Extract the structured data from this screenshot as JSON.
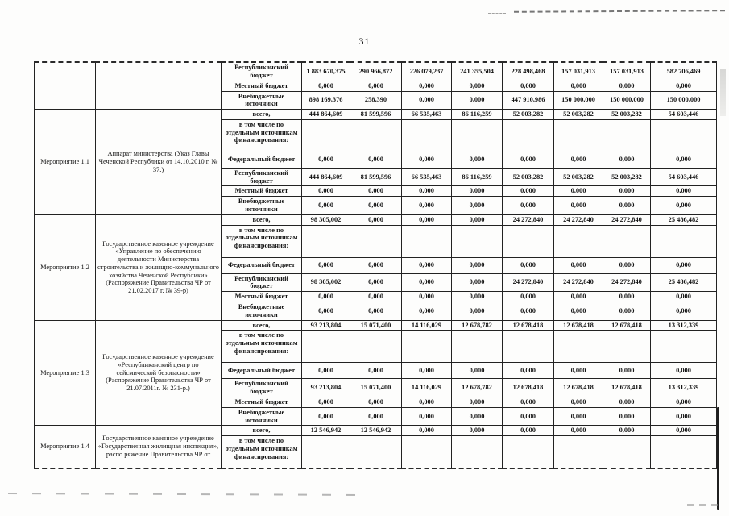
{
  "page": {
    "number": "31"
  },
  "table": {
    "sections": [
      {
        "activity": "",
        "description": "",
        "rows": [
          {
            "label": "Республиканский бюджет",
            "values": [
              "1 883 670,375",
              "290 966,872",
              "226 079,237",
              "241 355,504",
              "228 498,468",
              "157 031,913",
              "157 031,913",
              "582 706,469"
            ]
          },
          {
            "label": "Местный бюджет",
            "values": [
              "0,000",
              "0,000",
              "0,000",
              "0,000",
              "0,000",
              "0,000",
              "0,000",
              "0,000"
            ]
          },
          {
            "label": "Внебюджетные источники",
            "values": [
              "898 169,376",
              "258,390",
              "0,000",
              "0,000",
              "447 910,986",
              "150 000,000",
              "150 000,000",
              "150 000,000"
            ]
          }
        ]
      },
      {
        "activity": "Мероприятие 1.1",
        "description": "Аппарат министерства (Указ Главы Чеченской Республики  от 14.10.2010 г. № 37.)",
        "rows": [
          {
            "label": "всего,",
            "values": [
              "444 864,609",
              "81 599,596",
              "66 535,463",
              "86 116,259",
              "52 003,282",
              "52 003,282",
              "52 003,282",
              "54 603,446"
            ]
          },
          {
            "label": "в том числе по отдельным источникам финансирования:",
            "values": [
              "",
              "",
              "",
              "",
              "",
              "",
              "",
              ""
            ]
          },
          {
            "label": "Федеральный бюджет",
            "values": [
              "0,000",
              "0,000",
              "0,000",
              "0,000",
              "0,000",
              "0,000",
              "0,000",
              "0,000"
            ]
          },
          {
            "label": "Республиканский бюджет",
            "values": [
              "444 864,609",
              "81 599,596",
              "66 535,463",
              "86 116,259",
              "52 003,282",
              "52 003,282",
              "52 003,282",
              "54 603,446"
            ]
          },
          {
            "label": "Местный бюджет",
            "values": [
              "0,000",
              "0,000",
              "0,000",
              "0,000",
              "0,000",
              "0,000",
              "0,000",
              "0,000"
            ]
          },
          {
            "label": "Внебюджетные источники",
            "values": [
              "0,000",
              "0,000",
              "0,000",
              "0,000",
              "0,000",
              "0,000",
              "0,000",
              "0,000"
            ]
          }
        ]
      },
      {
        "activity": "Мероприятие 1.2",
        "description": "Государственное казенное учреждение «Управление по обеспечению деятельности Министерства строительства и жилищно-коммунального хозяйства Чеченской Республики» (Распоряжение Правительства ЧР от 21.02.2017 г. № 39-р)",
        "rows": [
          {
            "label": "всего,",
            "values": [
              "98 305,002",
              "0,000",
              "0,000",
              "0,000",
              "24 272,840",
              "24 272,840",
              "24 272,840",
              "25 486,482"
            ]
          },
          {
            "label": "в том числе по отдельным источникам финансирования:",
            "values": [
              "",
              "",
              "",
              "",
              "",
              "",
              "",
              ""
            ]
          },
          {
            "label": "Федеральный бюджет",
            "values": [
              "0,000",
              "0,000",
              "0,000",
              "0,000",
              "0,000",
              "0,000",
              "0,000",
              "0,000"
            ]
          },
          {
            "label": "Республиканский бюджет",
            "values": [
              "98 305,002",
              "0,000",
              "0,000",
              "0,000",
              "24 272,840",
              "24 272,840",
              "24 272,840",
              "25 486,482"
            ]
          },
          {
            "label": "Местный бюджет",
            "values": [
              "0,000",
              "0,000",
              "0,000",
              "0,000",
              "0,000",
              "0,000",
              "0,000",
              "0,000"
            ]
          },
          {
            "label": "Внебюджетные источники",
            "values": [
              "0,000",
              "0,000",
              "0,000",
              "0,000",
              "0,000",
              "0,000",
              "0,000",
              "0,000"
            ]
          }
        ]
      },
      {
        "activity": "Мероприятие 1.3",
        "description": "Государственное казенное учреждение «Республиканский центр по сейсмической безопасности» (Распоряжение Правительства ЧР от 21.07.2011г. № 231-р.)",
        "rows": [
          {
            "label": "всего,",
            "values": [
              "93 213,804",
              "15 071,400",
              "14 116,029",
              "12 678,782",
              "12 678,418",
              "12 678,418",
              "12 678,418",
              "13 312,339"
            ]
          },
          {
            "label": "в том числе по отдельным источникам финансирования:",
            "values": [
              "",
              "",
              "",
              "",
              "",
              "",
              "",
              ""
            ]
          },
          {
            "label": "Федеральный бюджет",
            "values": [
              "0,000",
              "0,000",
              "0,000",
              "0,000",
              "0,000",
              "0,000",
              "0,000",
              "0,000"
            ]
          },
          {
            "label": "Республиканский бюджет",
            "values": [
              "93 213,804",
              "15 071,400",
              "14 116,029",
              "12 678,782",
              "12 678,418",
              "12 678,418",
              "12 678,418",
              "13 312,339"
            ]
          },
          {
            "label": "Местный бюджет",
            "values": [
              "0,000",
              "0,000",
              "0,000",
              "0,000",
              "0,000",
              "0,000",
              "0,000",
              "0,000"
            ]
          },
          {
            "label": "Внебюджетные источники",
            "values": [
              "0,000",
              "0,000",
              "0,000",
              "0,000",
              "0,000",
              "0,000",
              "0,000",
              "0,000"
            ]
          }
        ]
      },
      {
        "activity": "Мероприятие 1.4",
        "description": "Государственное казенное учреждение «Государственная жилищная инспекция», распо ряжение Правительства ЧР от",
        "rows": [
          {
            "label": "всего,",
            "values": [
              "12 546,942",
              "12 546,942",
              "0,000",
              "0,000",
              "0,000",
              "0,000",
              "0,000",
              "0,000"
            ]
          },
          {
            "label": "в том числе по отдельным источникам финансирования:",
            "values": [
              "",
              "",
              "",
              "",
              "",
              "",
              "",
              ""
            ]
          }
        ]
      }
    ]
  }
}
